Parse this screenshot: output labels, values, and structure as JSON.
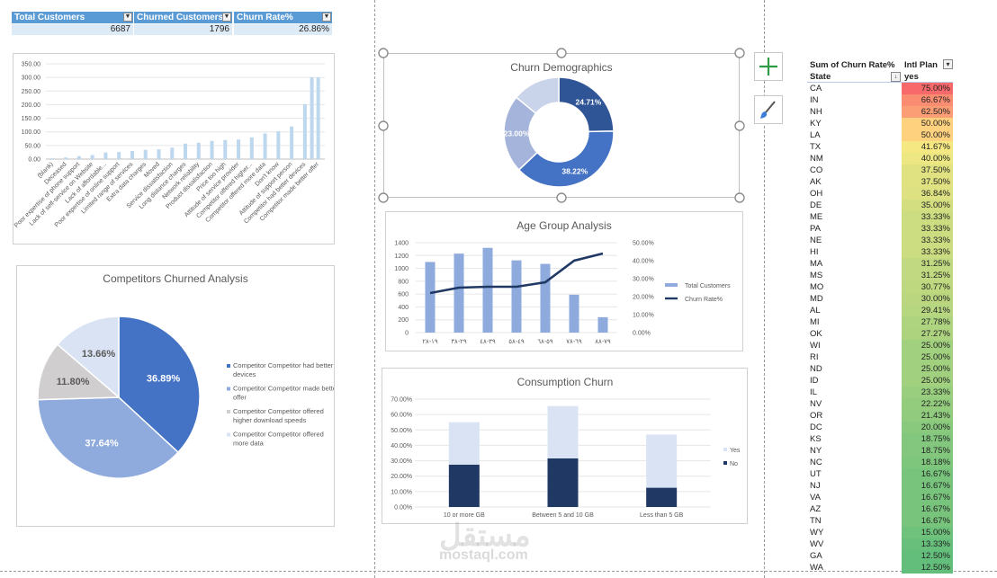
{
  "kpis": [
    {
      "label": "Total Customers",
      "value": "6687"
    },
    {
      "label": "Churned Customers",
      "value": "1796"
    },
    {
      "label": "Churn Rate%",
      "value": "26.86%"
    }
  ],
  "chart_data": [
    {
      "id": "churn-reason",
      "type": "bar",
      "title": "",
      "ylim": [
        0,
        350
      ],
      "yticks": [
        "0.00",
        "50.00",
        "100.00",
        "150.00",
        "200.00",
        "250.00",
        "300.00",
        "350.00"
      ],
      "categories": [
        "(blank)",
        "Deceased",
        "Poor expertise of phone support",
        "Lack of self-service on Website",
        "Lack of affordable...",
        "Poor expertise of online support",
        "Limited range of services",
        "Extra data charges",
        "Moved",
        "Service dissatisfaction",
        "Long distance charges",
        "Network reliability",
        "Product dissatisfaction",
        "Price too high",
        "Attitude of service provider",
        "Competitor offered higher...",
        "Competitor offered more data",
        "Don't know",
        "Attitude of support person",
        "Competitor had better devices",
        "Competitor made better offer"
      ],
      "values": [
        3,
        6,
        11,
        15,
        24,
        26,
        30,
        34,
        36,
        42,
        57,
        60,
        67,
        70,
        72,
        80,
        94,
        102,
        120,
        202,
        300
      ],
      "extra_values": [
        300
      ],
      "color": "#bdd7ee"
    },
    {
      "id": "competitors",
      "type": "pie",
      "title": "Competitors Churned Analysis",
      "legend": "right",
      "slices": [
        {
          "name": "Competitor Competitor had better devices",
          "value": 36.89,
          "label": "36.89%",
          "color": "#4472c4"
        },
        {
          "name": "Competitor Competitor made better offer",
          "value": 37.64,
          "label": "37.64%",
          "color": "#8faadc"
        },
        {
          "name": "Competitor Competitor offered higher download speeds",
          "value": 11.8,
          "label": "11.80%",
          "color": "#d0cece"
        },
        {
          "name": "Competitor Competitor offered more data",
          "value": 13.66,
          "label": "13.66%",
          "color": "#dae3f3"
        }
      ]
    },
    {
      "id": "demographics",
      "type": "pie",
      "donut": true,
      "title": "Churn Demographics",
      "slices": [
        {
          "value": 24.71,
          "label": "24.71%",
          "color": "#2f5597"
        },
        {
          "value": 38.22,
          "label": "38.22%",
          "color": "#4472c4"
        },
        {
          "value": 23.0,
          "label": "23.00%",
          "color": "#a5b4db"
        }
      ],
      "extra_slice": {
        "value": 14.07,
        "color": "#c9d3ea"
      }
    },
    {
      "id": "age",
      "type": "bar",
      "title": "Age Group Analysis",
      "categories": [
        "١٩-٢٨",
        "٢٩-٣٨",
        "٣٩-٤٨",
        "٤٩-٥٨",
        "٥٩-٦٨",
        "٦٩-٧٨",
        "٧٩-٨٨"
      ],
      "series": [
        {
          "name": "Total Customers",
          "type": "bar",
          "axis": "left",
          "color": "#8faadc",
          "values": [
            1100,
            1230,
            1320,
            1125,
            1070,
            590,
            240
          ]
        },
        {
          "name": "Churn Rate%",
          "type": "line",
          "axis": "right",
          "color": "#203864",
          "values": [
            22,
            25,
            25.5,
            25.5,
            28,
            40,
            44
          ]
        }
      ],
      "ylim": [
        0,
        1400
      ],
      "y2lim": [
        0,
        50
      ],
      "yticks": [
        "0",
        "200",
        "400",
        "600",
        "800",
        "1000",
        "1200",
        "1400"
      ],
      "y2ticks": [
        "0.00%",
        "10.00%",
        "20.00%",
        "30.00%",
        "40.00%",
        "50.00%"
      ],
      "legend": "right"
    },
    {
      "id": "consumption",
      "type": "bar",
      "stacked": true,
      "title": "Consumption Churn",
      "categories": [
        "10 or more GB",
        "Between 5 and 10 GB",
        "Less than 5 GB"
      ],
      "series": [
        {
          "name": "No",
          "color": "#203864",
          "values": [
            27.5,
            31.5,
            12.5
          ]
        },
        {
          "name": "Yes",
          "color": "#dae3f3",
          "values": [
            27.5,
            34,
            34.5
          ]
        }
      ],
      "ylim": [
        0,
        70
      ],
      "yticks": [
        "0.00%",
        "10.00%",
        "20.00%",
        "30.00%",
        "40.00%",
        "50.00%",
        "60.00%",
        "70.00%"
      ],
      "legend_order": [
        "Yes",
        "No"
      ],
      "legend": "right"
    },
    {
      "id": "state-pivot",
      "type": "table",
      "headers": {
        "value_header": "Sum of Churn Rate%",
        "column_header": "Intl Plan",
        "row_header": "State",
        "column_value": "yes"
      },
      "rows": [
        [
          "CA",
          "75.00%",
          75
        ],
        [
          "IN",
          "66.67%",
          66.67
        ],
        [
          "NH",
          "62.50%",
          62.5
        ],
        [
          "KY",
          "50.00%",
          50
        ],
        [
          "LA",
          "50.00%",
          50
        ],
        [
          "TX",
          "41.67%",
          41.67
        ],
        [
          "NM",
          "40.00%",
          40
        ],
        [
          "CO",
          "37.50%",
          37.5
        ],
        [
          "AK",
          "37.50%",
          37.5
        ],
        [
          "OH",
          "36.84%",
          36.84
        ],
        [
          "DE",
          "35.00%",
          35
        ],
        [
          "ME",
          "33.33%",
          33.33
        ],
        [
          "PA",
          "33.33%",
          33.33
        ],
        [
          "NE",
          "33.33%",
          33.33
        ],
        [
          "HI",
          "33.33%",
          33.33
        ],
        [
          "MA",
          "31.25%",
          31.25
        ],
        [
          "MS",
          "31.25%",
          31.25
        ],
        [
          "MO",
          "30.77%",
          30.77
        ],
        [
          "MD",
          "30.00%",
          30
        ],
        [
          "AL",
          "29.41%",
          29.41
        ],
        [
          "MI",
          "27.78%",
          27.78
        ],
        [
          "OK",
          "27.27%",
          27.27
        ],
        [
          "WI",
          "25.00%",
          25
        ],
        [
          "RI",
          "25.00%",
          25
        ],
        [
          "ND",
          "25.00%",
          25
        ],
        [
          "ID",
          "25.00%",
          25
        ],
        [
          "IL",
          "23.33%",
          23.33
        ],
        [
          "NV",
          "22.22%",
          22.22
        ],
        [
          "OR",
          "21.43%",
          21.43
        ],
        [
          "DC",
          "20.00%",
          20
        ],
        [
          "KS",
          "18.75%",
          18.75
        ],
        [
          "NY",
          "18.75%",
          18.75
        ],
        [
          "NC",
          "18.18%",
          18.18
        ],
        [
          "UT",
          "16.67%",
          16.67
        ],
        [
          "NJ",
          "16.67%",
          16.67
        ],
        [
          "VA",
          "16.67%",
          16.67
        ],
        [
          "AZ",
          "16.67%",
          16.67
        ],
        [
          "TN",
          "16.67%",
          16.67
        ],
        [
          "WY",
          "15.00%",
          15
        ],
        [
          "WV",
          "13.33%",
          13.33
        ],
        [
          "GA",
          "12.50%",
          12.5
        ],
        [
          "WA",
          "12.50%",
          12.5
        ]
      ]
    }
  ],
  "watermark": {
    "arabic": "مستقل",
    "latin": "mostaql.com"
  },
  "icons": {
    "add": "plus-icon",
    "style": "brush-icon",
    "filter": "filter-icon",
    "sort": "sort-icon",
    "dropdown": "dropdown-arrow-icon"
  }
}
